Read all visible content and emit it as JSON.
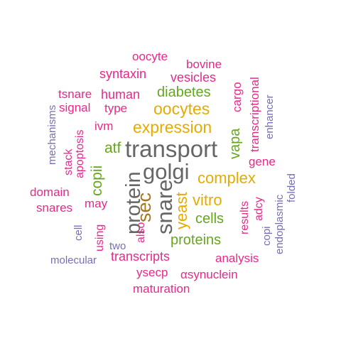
{
  "colors": {
    "magenta": "#e7298a",
    "orange": "#e6ab02",
    "green": "#66a61e",
    "gray": "#666666",
    "purple": "#7570b3",
    "brown": "#a6761d"
  },
  "words": [
    {
      "text": "transport",
      "color": "#666666"
    },
    {
      "text": "golgi",
      "color": "#666666"
    },
    {
      "text": "protein",
      "color": "#666666"
    },
    {
      "text": "snare",
      "color": "#666666"
    },
    {
      "text": "sec",
      "color": "#a6761d"
    },
    {
      "text": "expression",
      "color": "#e6ab02"
    },
    {
      "text": "oocytes",
      "color": "#e6ab02"
    },
    {
      "text": "complex",
      "color": "#e6ab02"
    },
    {
      "text": "yeast",
      "color": "#e6ab02"
    },
    {
      "text": "vitro",
      "color": "#e6ab02"
    },
    {
      "text": "diabetes",
      "color": "#66a61e"
    },
    {
      "text": "copii",
      "color": "#66a61e"
    },
    {
      "text": "atf",
      "color": "#66a61e"
    },
    {
      "text": "vapa",
      "color": "#66a61e"
    },
    {
      "text": "cells",
      "color": "#66a61e"
    },
    {
      "text": "proteins",
      "color": "#66a61e"
    },
    {
      "text": "oocyte",
      "color": "#e7298a"
    },
    {
      "text": "bovine",
      "color": "#e7298a"
    },
    {
      "text": "syntaxin",
      "color": "#e7298a"
    },
    {
      "text": "vesicles",
      "color": "#e7298a"
    },
    {
      "text": "cargo",
      "color": "#e7298a"
    },
    {
      "text": "tsnare",
      "color": "#e7298a"
    },
    {
      "text": "human",
      "color": "#e7298a"
    },
    {
      "text": "transcriptional",
      "color": "#e7298a"
    },
    {
      "text": "signal",
      "color": "#e7298a"
    },
    {
      "text": "type",
      "color": "#e7298a"
    },
    {
      "text": "ivm",
      "color": "#e7298a"
    },
    {
      "text": "apoptosis",
      "color": "#e7298a"
    },
    {
      "text": "stack",
      "color": "#e7298a"
    },
    {
      "text": "gene",
      "color": "#e7298a"
    },
    {
      "text": "domain",
      "color": "#e7298a"
    },
    {
      "text": "snares",
      "color": "#e7298a"
    },
    {
      "text": "may",
      "color": "#e7298a"
    },
    {
      "text": "results",
      "color": "#e7298a"
    },
    {
      "text": "adcy",
      "color": "#e7298a"
    },
    {
      "text": "using",
      "color": "#e7298a"
    },
    {
      "text": "also",
      "color": "#e7298a"
    },
    {
      "text": "transcripts",
      "color": "#e7298a"
    },
    {
      "text": "analysis",
      "color": "#e7298a"
    },
    {
      "text": "ysecp",
      "color": "#e7298a"
    },
    {
      "text": "αsynuclein",
      "color": "#e7298a"
    },
    {
      "text": "maturation",
      "color": "#e7298a"
    },
    {
      "text": "mechanisms",
      "color": "#7570b3"
    },
    {
      "text": "enhancer",
      "color": "#7570b3"
    },
    {
      "text": "folded",
      "color": "#7570b3"
    },
    {
      "text": "endoplasmic",
      "color": "#7570b3"
    },
    {
      "text": "copi",
      "color": "#7570b3"
    },
    {
      "text": "cell",
      "color": "#7570b3"
    },
    {
      "text": "two",
      "color": "#7570b3"
    },
    {
      "text": "molecular",
      "color": "#7570b3"
    }
  ]
}
